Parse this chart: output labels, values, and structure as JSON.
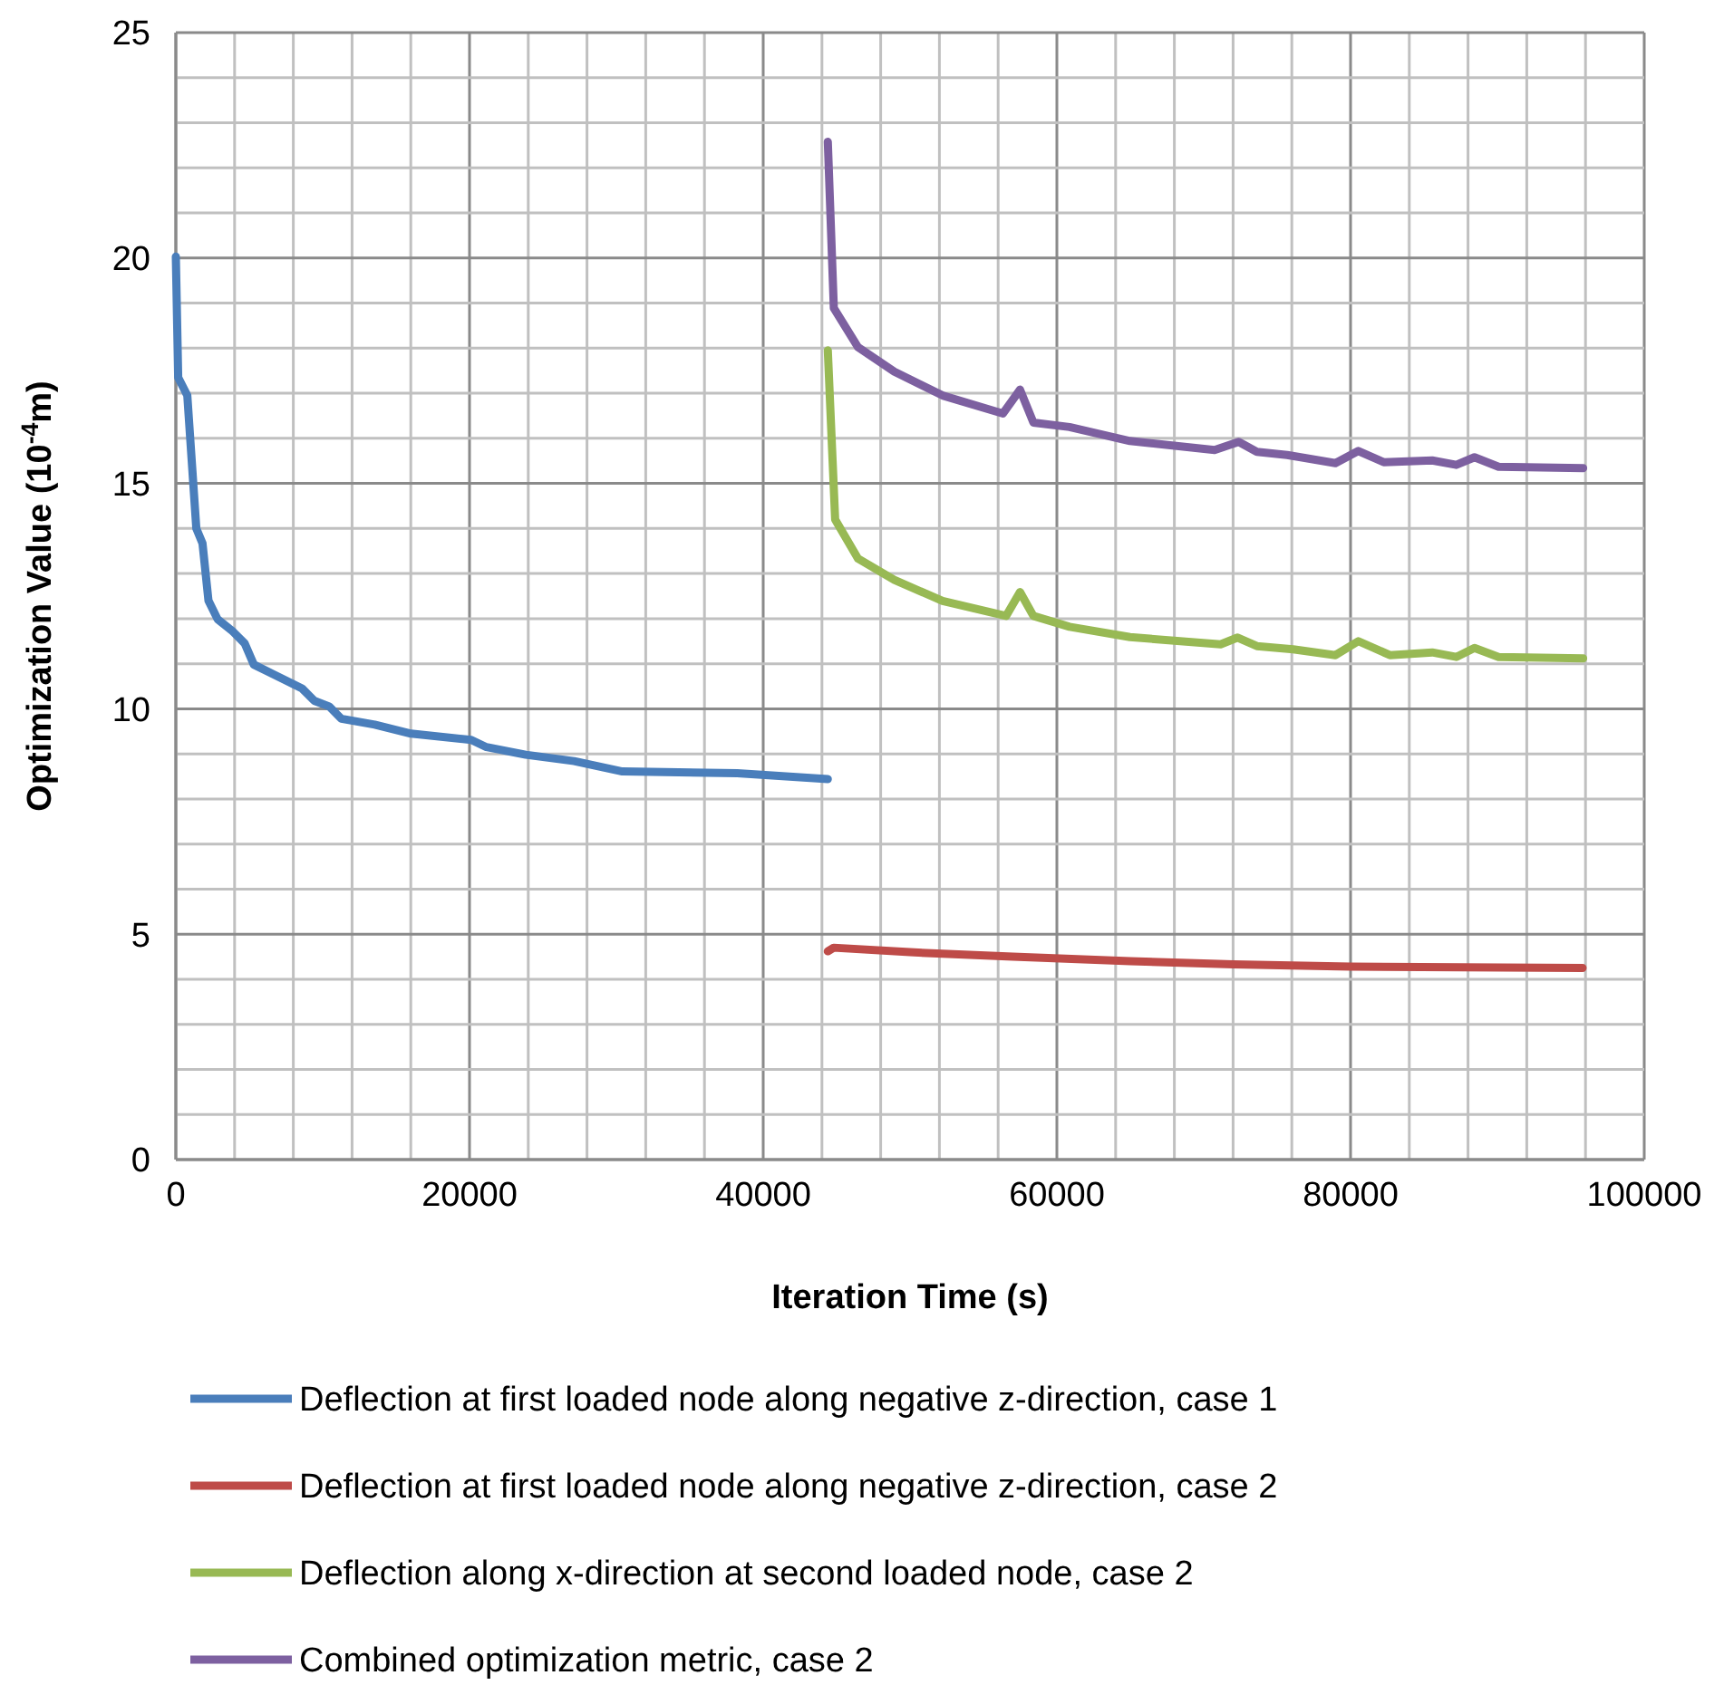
{
  "chart_data": {
    "type": "line",
    "xlabel": "Iteration Time (s)",
    "ylabel": "Optimization Value (10$^{-4}$m)",
    "xlim": [
      0,
      100000
    ],
    "ylim": [
      0,
      25
    ],
    "xticks": [
      0,
      {
        "value": 4000,
        "label": null
      },
      {
        "value": 8000,
        "label": null
      },
      {
        "value": 12000,
        "label": null
      },
      {
        "value": 16000,
        "label": null
      },
      20000,
      {
        "value": 24000,
        "label": null
      },
      {
        "value": 28000,
        "label": null
      },
      {
        "value": 32000,
        "label": null
      },
      {
        "value": 36000,
        "label": null
      },
      40000,
      {
        "value": 44000,
        "label": null
      },
      {
        "value": 48000,
        "label": null
      },
      {
        "value": 52000,
        "label": null
      },
      {
        "value": 56000,
        "label": null
      },
      60000,
      {
        "value": 64000,
        "label": null
      },
      {
        "value": 68000,
        "label": null
      },
      {
        "value": 72000,
        "label": null
      },
      {
        "value": 76000,
        "label": null
      },
      80000,
      {
        "value": 84000,
        "label": null
      },
      {
        "value": 88000,
        "label": null
      },
      {
        "value": 92000,
        "label": null
      },
      {
        "value": 96000,
        "label": null
      },
      100000
    ],
    "yticks": [
      0,
      {
        "value": 1,
        "label": null
      },
      {
        "value": 2,
        "label": null
      },
      {
        "value": 3,
        "label": null
      },
      {
        "value": 4,
        "label": null
      },
      5,
      {
        "value": 6,
        "label": null
      },
      {
        "value": 7,
        "label": null
      },
      {
        "value": 8,
        "label": null
      },
      {
        "value": 9,
        "label": null
      },
      10,
      {
        "value": 11,
        "label": null
      },
      {
        "value": 12,
        "label": null
      },
      {
        "value": 13,
        "label": null
      },
      {
        "value": 14,
        "label": null
      },
      15,
      {
        "value": 16,
        "label": null
      },
      {
        "value": 17,
        "label": null
      },
      {
        "value": 18,
        "label": null
      },
      {
        "value": 19,
        "label": null
      },
      20,
      {
        "value": 21,
        "label": null
      },
      {
        "value": 22,
        "label": null
      },
      {
        "value": 23,
        "label": null
      },
      {
        "value": 24,
        "label": null
      },
      25
    ],
    "grid": true,
    "legend": "bottom",
    "marker": "none",
    "line_style": "solid",
    "series": [
      {
        "name": "Deflection at first loaded node along negative z-direction, case 1",
        "color": "#4a7ebb",
        "x": [
          0,
          160,
          780,
          1395,
          1815,
          2222,
          2840,
          3865,
          4690,
          5310,
          6540,
          8600,
          9420,
          10450,
          11270,
          13540,
          16010,
          20120,
          21150,
          23830,
          27120,
          30410,
          38230,
          44400
        ],
        "values": [
          20.03,
          17.35,
          16.95,
          14.0,
          13.67,
          12.4,
          11.99,
          11.72,
          11.45,
          10.98,
          10.78,
          10.45,
          10.18,
          10.05,
          9.78,
          9.65,
          9.45,
          9.31,
          9.15,
          8.98,
          8.84,
          8.61,
          8.57,
          8.44
        ]
      },
      {
        "name": "Deflection at first loaded node along negative z-direction, case 2",
        "color": "#be4b48",
        "x": [
          44400,
          44800,
          50000,
          57000,
          65000,
          72000,
          80000,
          95800
        ],
        "values": [
          4.62,
          4.7,
          4.6,
          4.5,
          4.4,
          4.33,
          4.28,
          4.25
        ]
      },
      {
        "name": "Deflection along x-direction at second loaded node, case 2",
        "color": "#98b954",
        "x": [
          44400,
          44900,
          46460,
          48930,
          52220,
          56540,
          57490,
          58400,
          60860,
          64980,
          71150,
          72310,
          73620,
          76090,
          78970,
          80530,
          82680,
          85560,
          87200,
          88440,
          90080,
          95840
        ],
        "values": [
          17.95,
          14.2,
          13.33,
          12.86,
          12.39,
          12.06,
          12.59,
          12.06,
          11.82,
          11.59,
          11.43,
          11.58,
          11.39,
          11.32,
          11.19,
          11.5,
          11.19,
          11.25,
          11.15,
          11.35,
          11.15,
          11.12
        ]
      },
      {
        "name": "Combined optimization metric, case 2",
        "color": "#7d60a0",
        "x": [
          44400,
          44810,
          46460,
          48930,
          52220,
          56330,
          57490,
          58400,
          60860,
          64980,
          70740,
          72380,
          73620,
          75680,
          78970,
          80530,
          82260,
          85560,
          87200,
          88440,
          90080,
          95840
        ],
        "values": [
          22.58,
          18.89,
          18.02,
          17.48,
          16.95,
          16.55,
          17.08,
          16.35,
          16.25,
          15.94,
          15.74,
          15.92,
          15.7,
          15.63,
          15.45,
          15.72,
          15.47,
          15.51,
          15.41,
          15.58,
          15.37,
          15.34
        ]
      }
    ]
  }
}
